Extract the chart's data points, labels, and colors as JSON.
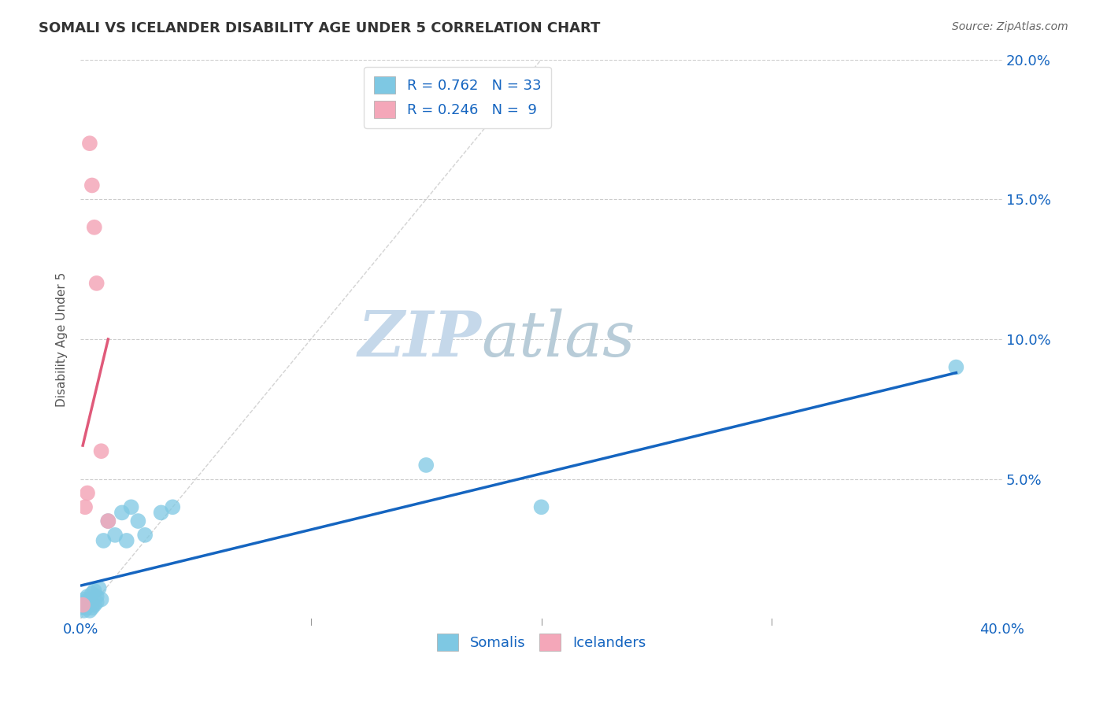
{
  "title": "SOMALI VS ICELANDER DISABILITY AGE UNDER 5 CORRELATION CHART",
  "source": "Source: ZipAtlas.com",
  "ylabel": "Disability Age Under 5",
  "xlim": [
    0.0,
    0.4
  ],
  "ylim": [
    0.0,
    0.2
  ],
  "xticks": [
    0.0,
    0.05,
    0.1,
    0.15,
    0.2,
    0.25,
    0.3,
    0.35,
    0.4
  ],
  "yticks": [
    0.0,
    0.05,
    0.1,
    0.15,
    0.2
  ],
  "somali_x": [
    0.0005,
    0.001,
    0.001,
    0.0015,
    0.002,
    0.002,
    0.0025,
    0.003,
    0.003,
    0.0035,
    0.004,
    0.004,
    0.005,
    0.005,
    0.006,
    0.006,
    0.007,
    0.007,
    0.008,
    0.009,
    0.01,
    0.012,
    0.015,
    0.018,
    0.02,
    0.022,
    0.025,
    0.028,
    0.035,
    0.04,
    0.15,
    0.2,
    0.38
  ],
  "somali_y": [
    0.004,
    0.005,
    0.006,
    0.003,
    0.005,
    0.007,
    0.004,
    0.006,
    0.008,
    0.005,
    0.003,
    0.007,
    0.004,
    0.009,
    0.005,
    0.01,
    0.006,
    0.008,
    0.011,
    0.007,
    0.028,
    0.035,
    0.03,
    0.038,
    0.028,
    0.04,
    0.035,
    0.03,
    0.038,
    0.04,
    0.055,
    0.04,
    0.09
  ],
  "icelander_x": [
    0.001,
    0.002,
    0.003,
    0.004,
    0.005,
    0.006,
    0.007,
    0.009,
    0.012
  ],
  "icelander_y": [
    0.005,
    0.04,
    0.045,
    0.17,
    0.155,
    0.14,
    0.12,
    0.06,
    0.035
  ],
  "somali_color": "#7ec8e3",
  "icelander_color": "#f4a7b9",
  "somali_line_color": "#1565c0",
  "icelander_line_color": "#e05a7a",
  "diag_line_color": "#c8c8c8",
  "watermark_zip_color": "#c8d8e8",
  "watermark_atlas_color": "#b8c8d8",
  "R_somali": 0.762,
  "N_somali": 33,
  "R_icelander": 0.246,
  "N_icelander": 9,
  "legend_label_somali": "Somalis",
  "legend_label_icelander": "Icelanders",
  "background_color": "#ffffff",
  "grid_color": "#cccccc",
  "somali_line_x": [
    0.0005,
    0.38
  ],
  "somali_line_y": [
    0.012,
    0.088
  ],
  "icelander_line_x": [
    0.001,
    0.012
  ],
  "icelander_line_y": [
    0.062,
    0.1
  ]
}
